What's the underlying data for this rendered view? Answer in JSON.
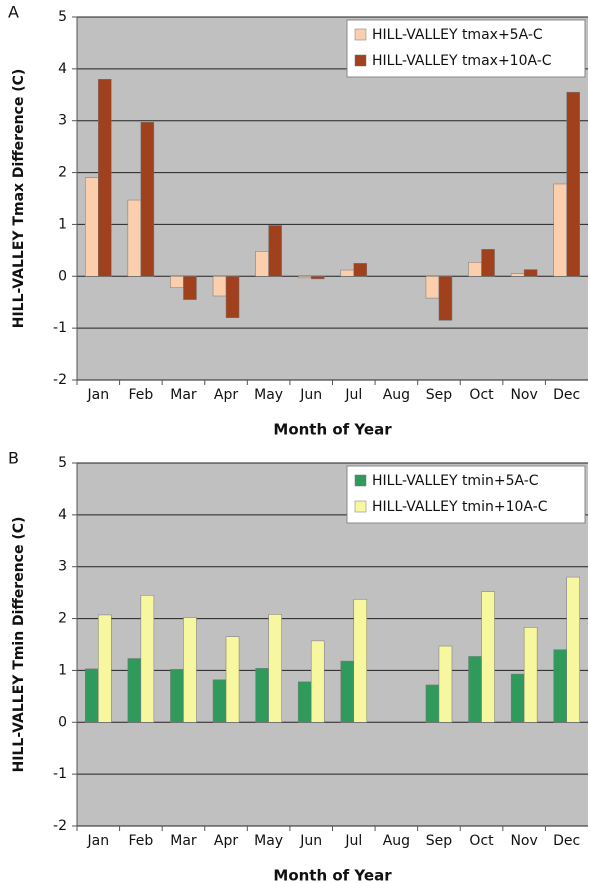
{
  "chart_data": [
    {
      "type": "bar",
      "panel": "A",
      "y_label": "HILL-VALLEY Tmax Difference (C)",
      "x_label": "Month of Year",
      "categories": [
        "Jan",
        "Feb",
        "Mar",
        "Apr",
        "May",
        "Jun",
        "Jul",
        "Aug",
        "Sep",
        "Oct",
        "Nov",
        "Dec"
      ],
      "series": [
        {
          "name": "HILL-VALLEY tmax+5A-C",
          "color": "#fbcfae",
          "values": [
            1.9,
            1.47,
            -0.22,
            -0.38,
            0.48,
            -0.03,
            0.12,
            null,
            -0.42,
            0.27,
            0.05,
            1.78
          ]
        },
        {
          "name": "HILL-VALLEY tmax+10A-C",
          "color": "#a0401c",
          "values": [
            3.8,
            2.97,
            -0.45,
            -0.8,
            0.98,
            -0.05,
            0.25,
            null,
            -0.85,
            0.52,
            0.13,
            3.55
          ]
        }
      ],
      "ylim": [
        -2,
        5
      ],
      "yticks": [
        -2,
        -1,
        0,
        1,
        2,
        3,
        4,
        5
      ],
      "grid": true,
      "legend": "upper right"
    },
    {
      "type": "bar",
      "panel": "B",
      "y_label": "HILL-VALLEY Tmin Difference (C)",
      "x_label": "Month of Year",
      "categories": [
        "Jan",
        "Feb",
        "Mar",
        "Apr",
        "May",
        "Jun",
        "Jul",
        "Aug",
        "Sep",
        "Oct",
        "Nov",
        "Dec"
      ],
      "series": [
        {
          "name": "HILL-VALLEY tmin+5A-C",
          "color": "#2f9a5c",
          "values": [
            1.03,
            1.23,
            1.02,
            0.82,
            1.04,
            0.78,
            1.18,
            null,
            0.72,
            1.27,
            0.93,
            1.4
          ]
        },
        {
          "name": "HILL-VALLEY tmin+10A-C",
          "color": "#f7f7a0",
          "values": [
            2.07,
            2.45,
            2.02,
            1.65,
            2.08,
            1.57,
            2.37,
            null,
            1.47,
            2.52,
            1.83,
            2.8
          ]
        }
      ],
      "ylim": [
        -2,
        5
      ],
      "yticks": [
        -2,
        -1,
        0,
        1,
        2,
        3,
        4,
        5
      ],
      "grid": true,
      "legend": "upper right"
    }
  ]
}
